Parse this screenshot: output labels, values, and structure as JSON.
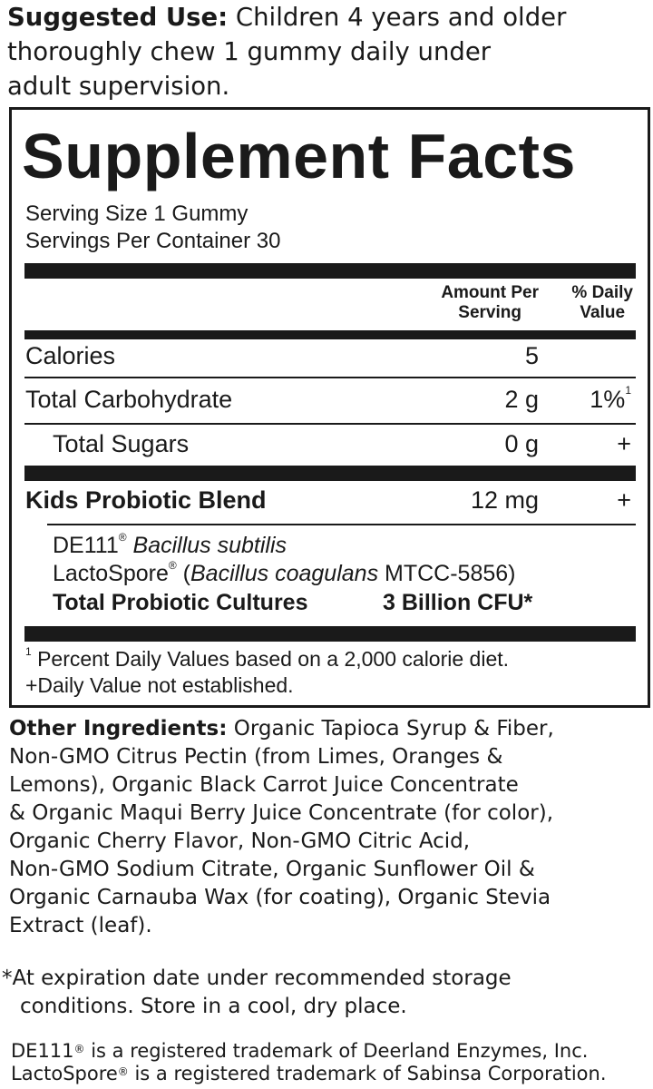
{
  "suggested_use": {
    "label": "Suggested Use:",
    "lines": [
      " Children 4 years and older",
      "thoroughly chew 1 gummy daily under",
      "adult supervision."
    ]
  },
  "facts": {
    "title": "Supplement Facts",
    "serving_size": "Serving Size 1 Gummy",
    "servings_per_container": "Servings Per Container 30",
    "col_amount": [
      "Amount Per",
      "Serving"
    ],
    "col_dv": [
      "% Daily",
      "Value"
    ],
    "rows": [
      {
        "name": "Calories",
        "amount": "5",
        "dv": ""
      },
      {
        "name": "Total Carbohydrate",
        "amount": "2 g",
        "dv": "1%",
        "dv_note": "1"
      },
      {
        "name": "Total Sugars",
        "amount": "0 g",
        "dv": "+"
      },
      {
        "name": "Kids Probiotic Blend",
        "amount": "12 mg",
        "dv": "+"
      }
    ],
    "blend": {
      "line1_brand": "DE111",
      "line1_reg": "®",
      "line1_species": " Bacillus subtilis",
      "line2_brand": "LactoSpore",
      "line2_reg": "®",
      "line2_open": " (",
      "line2_species": "Bacillus coagulans",
      "line2_strain": " MTCC-5856)",
      "total_label": "Total Probiotic Cultures",
      "total_value": "3 Billion CFU*"
    },
    "footnote_mark": "1",
    "footnote1": " Percent Daily Values based on a 2,000 calorie diet.",
    "footnote2": "+Daily Value not established."
  },
  "other_ingredients": {
    "label": "Other Ingredients:",
    "lines": [
      " Organic Tapioca Syrup & Fiber,",
      "Non-GMO Citrus Pectin (from Limes, Oranges &",
      "Lemons), Organic Black Carrot Juice Concentrate",
      "& Organic Maqui Berry Juice Concentrate (for color),",
      "Organic Cherry Flavor, Non-GMO Citric Acid,",
      "Non-GMO Sodium Citrate, Organic Sunflower Oil &",
      "Organic Carnauba Wax (for coating), Organic Stevia",
      "Extract (leaf)."
    ]
  },
  "expiration_note": [
    "*At expiration date under recommended storage",
    "conditions. Store in a cool, dry place."
  ],
  "trademarks": [
    {
      "brand": "DE111",
      "reg": "®",
      "text": " is a registered trademark of Deerland Enzymes, Inc."
    },
    {
      "brand": "LactoSpore",
      "reg": "®",
      "text": " is a registered trademark of Sabinsa Corporation."
    }
  ]
}
